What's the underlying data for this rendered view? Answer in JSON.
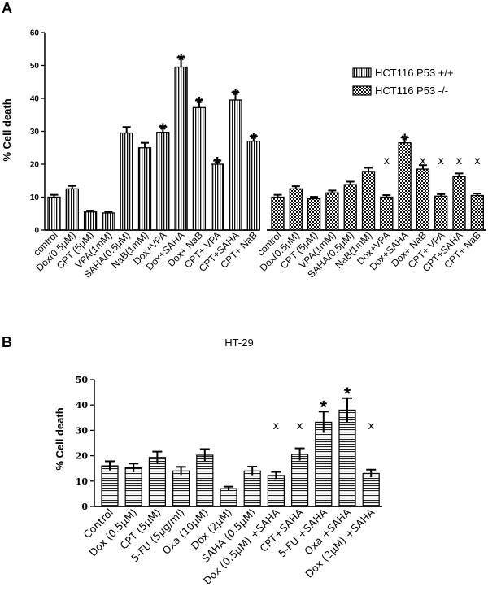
{
  "chart_data": [
    {
      "panel": "A",
      "type": "bar",
      "title": "",
      "xlabel": "",
      "ylabel": "% Cell death",
      "ylim": [
        0,
        60
      ],
      "yticks": [
        "0",
        "10",
        "20",
        "30",
        "40",
        "50",
        "60"
      ],
      "legend": {
        "position": "top-right",
        "entries": [
          {
            "name": "HCT116 P53 +/+",
            "pattern": "vertical-stripes"
          },
          {
            "name": "HCT116 P53 -/-",
            "pattern": "checker"
          }
        ]
      },
      "series": [
        {
          "name": "HCT116 P53 +/+",
          "pattern": "vertical-stripes",
          "categories": [
            "control",
            "Dox(0.5μM)",
            "CPT (5μM)",
            "VPA(1mM)",
            "SAHA(0.5μM)",
            "NaB(1mM)",
            "Dox+VPA",
            "Dox+SAHA",
            "Dox+ NaB",
            "CPT+ VPA",
            "CPT+SAHA",
            "CPT+ NaB"
          ],
          "values": [
            10,
            12.5,
            5.5,
            5.2,
            29.5,
            25,
            29.7,
            49.5,
            37.2,
            20,
            39.5,
            27
          ],
          "errors": [
            0.7,
            0.9,
            0.4,
            0.4,
            1.8,
            1.5,
            1.7,
            3.0,
            2.2,
            1.1,
            2.3,
            1.5
          ],
          "markers": [
            "",
            "",
            "",
            "",
            "",
            "",
            "*",
            "*",
            "*",
            "*",
            "*",
            "*"
          ]
        },
        {
          "name": "HCT116 P53 -/-",
          "pattern": "checker",
          "categories": [
            "control",
            "Dox(0.5μM)",
            "CPT (5μM)",
            "VPA(1mM)",
            "SAHA(0.5μM)",
            "NaB(1mM)",
            "Dox+VPA",
            "Dox+SAHA",
            "Dox+ NaB",
            "CPT+ VPA",
            "CPT+SAHA",
            "CPT+ NaB"
          ],
          "values": [
            10,
            12.5,
            9.5,
            11.3,
            13.8,
            17.8,
            10,
            26.5,
            18.5,
            10.3,
            16.2,
            10.5
          ],
          "errors": [
            0.7,
            0.8,
            0.6,
            0.7,
            0.9,
            1.1,
            0.6,
            1.6,
            1.2,
            0.6,
            1.0,
            0.6
          ],
          "markers": [
            "",
            "",
            "",
            "",
            "",
            "",
            "x",
            "*",
            "x",
            "x",
            "x",
            "x"
          ]
        }
      ]
    },
    {
      "panel": "B",
      "type": "bar",
      "title": "HT-29",
      "xlabel": "",
      "ylabel": "% Cell death",
      "ylim": [
        0,
        50
      ],
      "yticks": [
        "0",
        "10",
        "20",
        "30",
        "40",
        "50"
      ],
      "categories": [
        "Control",
        "Dox (0.5μM)",
        "CPT (5μM)",
        "5-FU (5μg/ml)",
        "Oxa (10μM)",
        "Dox (2μM)",
        "SAHA (0.5μM)",
        "Dox (0.5μM) +SAHA",
        "CPT+SAHA",
        "5-FU +SAHA",
        "Oxa +SAHA",
        "Dox (2μM) +SAHA"
      ],
      "series": [
        {
          "name": "HT-29",
          "pattern": "horizontal-stripes",
          "values": [
            16,
            15.2,
            19.3,
            14,
            20.2,
            7,
            14,
            12.2,
            20.5,
            33.2,
            38,
            13
          ],
          "errors": [
            1.8,
            1.7,
            2.3,
            1.6,
            2.4,
            0.8,
            1.7,
            1.4,
            2.4,
            4.2,
            4.7,
            1.5
          ],
          "markers": [
            "",
            "",
            "",
            "",
            "",
            "",
            "",
            "x",
            "x",
            "*",
            "*",
            "x"
          ]
        }
      ]
    }
  ],
  "panel_labels": [
    "A",
    "B"
  ],
  "marker_symbols": {
    "star": "*",
    "cross": "x"
  }
}
